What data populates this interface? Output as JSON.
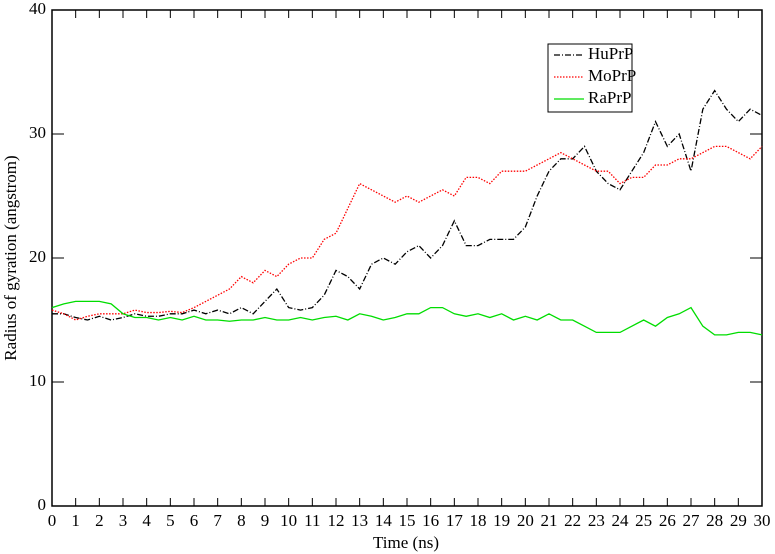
{
  "chart_data": {
    "type": "line",
    "x_label": "Time (ns)",
    "y_label": "Radius of gyration (angstrom)",
    "x": [
      0,
      0.5,
      1,
      1.5,
      2,
      2.5,
      3,
      3.5,
      4,
      4.5,
      5,
      5.5,
      6,
      6.5,
      7,
      7.5,
      8,
      8.5,
      9,
      9.5,
      10,
      10.5,
      11,
      11.5,
      12,
      12.5,
      13,
      13.5,
      14,
      14.5,
      15,
      15.5,
      16,
      16.5,
      17,
      17.5,
      18,
      18.5,
      19,
      19.5,
      20,
      20.5,
      21,
      21.5,
      22,
      22.5,
      23,
      23.5,
      24,
      24.5,
      25,
      25.5,
      26,
      26.5,
      27,
      27.5,
      28,
      28.5,
      29,
      29.5,
      30
    ],
    "series": [
      {
        "name": "HuPrP",
        "color": "#000000",
        "dash": "dashdot",
        "values": [
          15.5,
          15.5,
          15.2,
          15,
          15.3,
          15,
          15.2,
          15.5,
          15.3,
          15.3,
          15.5,
          15.5,
          15.8,
          15.5,
          15.8,
          15.5,
          16,
          15.5,
          16.5,
          17.5,
          16,
          15.8,
          16,
          17,
          19,
          18.5,
          17.5,
          19.5,
          20,
          19.5,
          20.5,
          21,
          20,
          21,
          23,
          21,
          21,
          21.5,
          21.5,
          21.5,
          22.5,
          25,
          27,
          28,
          28,
          29,
          27,
          26,
          25.5,
          27,
          28.5,
          31,
          29,
          30,
          27,
          32,
          33.5,
          32,
          31,
          32,
          31.5
        ]
      },
      {
        "name": "MoPrP",
        "color": "#ff0000",
        "dash": "dotted",
        "values": [
          15.8,
          15.5,
          15,
          15.3,
          15.5,
          15.5,
          15.5,
          15.8,
          15.6,
          15.6,
          15.7,
          15.6,
          16,
          16.5,
          17,
          17.5,
          18.5,
          18,
          19,
          18.5,
          19.5,
          20,
          20,
          21.5,
          22,
          24,
          26,
          25.5,
          25,
          24.5,
          25,
          24.5,
          25,
          25.5,
          25,
          26.5,
          26.5,
          26,
          27,
          27,
          27,
          27.5,
          28,
          28.5,
          28,
          27.5,
          27,
          27,
          26,
          26.5,
          26.5,
          27.5,
          27.5,
          28,
          28,
          28.5,
          29,
          29,
          28.5,
          28,
          29
        ]
      },
      {
        "name": "RaPrP",
        "color": "#00dd00",
        "dash": "solid",
        "values": [
          16,
          16.3,
          16.5,
          16.5,
          16.5,
          16.3,
          15.5,
          15.2,
          15.2,
          15,
          15.2,
          15,
          15.3,
          15,
          15,
          14.9,
          15,
          15,
          15.2,
          15,
          15,
          15.2,
          15,
          15.2,
          15.3,
          15,
          15.5,
          15.3,
          15,
          15.2,
          15.5,
          15.5,
          16,
          16,
          15.5,
          15.3,
          15.5,
          15.2,
          15.5,
          15,
          15.3,
          15,
          15.5,
          15,
          15,
          14.5,
          14,
          14,
          14,
          14.5,
          15,
          14.5,
          15.2,
          15.5,
          16,
          14.5,
          13.8,
          13.8,
          14,
          14,
          13.8
        ]
      }
    ],
    "xlim": [
      0,
      30
    ],
    "ylim": [
      0,
      40
    ],
    "xticks": [
      0,
      1,
      2,
      3,
      4,
      5,
      6,
      7,
      8,
      9,
      10,
      11,
      12,
      13,
      14,
      15,
      16,
      17,
      18,
      19,
      20,
      21,
      22,
      23,
      24,
      25,
      26,
      27,
      28,
      29,
      30
    ],
    "yticks": [
      0,
      10,
      20,
      30,
      40
    ],
    "legend": "top-right"
  }
}
